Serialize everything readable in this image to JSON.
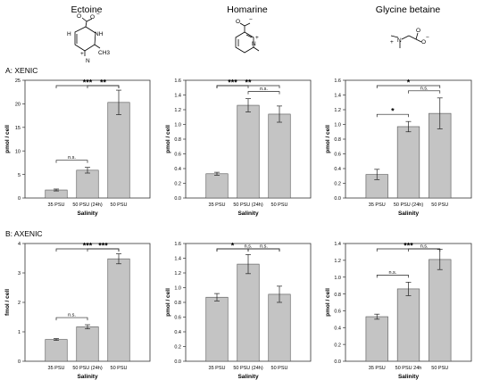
{
  "compounds": [
    {
      "name": "Ectoine",
      "structure_icon": "ectoine-structure-icon",
      "atoms": {
        "h": "H",
        "nh": "NH",
        "n": "N",
        "ch3": "CH3",
        "o": "O",
        "plus": "+",
        "minus": "−"
      }
    },
    {
      "name": "Homarine",
      "structure_icon": "homarine-structure-icon",
      "atoms": {
        "n": "N",
        "o": "O",
        "plus": "+",
        "minus": "−"
      }
    },
    {
      "name": "Glycine betaine",
      "structure_icon": "glycine-betaine-structure-icon",
      "atoms": {
        "n": "N",
        "o": "O",
        "plus": "+",
        "minus": "−"
      }
    }
  ],
  "sections": [
    {
      "label": "A:  XENIC"
    },
    {
      "label": "B:  AXENIC"
    }
  ],
  "colors": {
    "bar": "#c4c4c4",
    "bar_stroke": "#555555",
    "axis": "#333333",
    "text": "#000000"
  },
  "chart_data": [
    {
      "id": "xenic-ectoine",
      "type": "bar",
      "categories": [
        "35 PSU",
        "50 PSU (24h)",
        "50 PSU"
      ],
      "values": [
        1.7,
        5.9,
        20.3
      ],
      "errors": [
        0.2,
        0.6,
        2.6
      ],
      "ylabel": "pmol / cell",
      "xlabel": "Salinity",
      "ylim": [
        0,
        25
      ],
      "yticks": [
        0,
        5,
        10,
        15,
        20,
        25
      ],
      "ytick_labels": [
        "0",
        "5",
        "10",
        "15",
        "20",
        "25"
      ],
      "significance": [
        {
          "from": 0,
          "to": 1,
          "label": "n.s."
        },
        {
          "from": 1,
          "to": 2,
          "label": "**"
        },
        {
          "from": 0,
          "to": 2,
          "label": "***"
        }
      ]
    },
    {
      "id": "xenic-homarine",
      "type": "bar",
      "categories": [
        "35 PSU",
        "50 PSU (24h)",
        "50 PSU"
      ],
      "values": [
        0.33,
        1.26,
        1.14
      ],
      "errors": [
        0.02,
        0.09,
        0.11
      ],
      "ylabel": "pmol / cell",
      "xlabel": "Salinity",
      "ylim": [
        0,
        1.6
      ],
      "yticks": [
        0,
        0.2,
        0.4,
        0.6,
        0.8,
        1.0,
        1.2,
        1.4,
        1.6
      ],
      "ytick_labels": [
        "0.0",
        "0.2",
        "0.4",
        "0.6",
        "0.8",
        "1.0",
        "1.2",
        "1.4",
        "1.6"
      ],
      "significance": [
        {
          "from": 1,
          "to": 2,
          "label": "n.s."
        },
        {
          "from": 0,
          "to": 1,
          "label": "***"
        },
        {
          "from": 0,
          "to": 2,
          "label": "**"
        }
      ]
    },
    {
      "id": "xenic-glycine-betaine",
      "type": "bar",
      "categories": [
        "35 PSU",
        "50 PSU (24h)",
        "50 PSU"
      ],
      "values": [
        0.32,
        0.97,
        1.15
      ],
      "errors": [
        0.07,
        0.07,
        0.21
      ],
      "ylabel": "pmol / cell",
      "xlabel": "Salinity",
      "ylim": [
        0,
        1.6
      ],
      "yticks": [
        0,
        0.2,
        0.4,
        0.6,
        0.8,
        1.0,
        1.2,
        1.4,
        1.6
      ],
      "ytick_labels": [
        "0.0",
        "0.2",
        "0.4",
        "0.6",
        "0.8",
        "1.0",
        "1.2",
        "1.4",
        "1.6"
      ],
      "significance": [
        {
          "from": 0,
          "to": 1,
          "label": "*"
        },
        {
          "from": 1,
          "to": 2,
          "label": "n.s."
        },
        {
          "from": 0,
          "to": 2,
          "label": "*"
        }
      ]
    },
    {
      "id": "axenic-ectoine",
      "type": "bar",
      "categories": [
        "35 PSU",
        "50 PSU (24h)",
        "50 PSU"
      ],
      "values": [
        0.74,
        1.17,
        3.48
      ],
      "errors": [
        0.03,
        0.07,
        0.17
      ],
      "ylabel": "fmol / cell",
      "xlabel": "Salinity",
      "ylim": [
        0,
        4
      ],
      "yticks": [
        0,
        1,
        2,
        3,
        4
      ],
      "ytick_labels": [
        "0",
        "1",
        "2",
        "3",
        "4"
      ],
      "significance": [
        {
          "from": 0,
          "to": 1,
          "label": "n.s."
        },
        {
          "from": 1,
          "to": 2,
          "label": "***"
        },
        {
          "from": 0,
          "to": 2,
          "label": "***"
        }
      ]
    },
    {
      "id": "axenic-homarine",
      "type": "bar",
      "categories": [
        "35 PSU",
        "50 PSU (24h)",
        "50 PSU"
      ],
      "values": [
        0.87,
        1.32,
        0.91
      ],
      "errors": [
        0.05,
        0.13,
        0.11
      ],
      "ylabel": "pmol / cell",
      "xlabel": "Salinity",
      "ylim": [
        0,
        1.6
      ],
      "yticks": [
        0,
        0.2,
        0.4,
        0.6,
        0.8,
        1.0,
        1.2,
        1.4,
        1.6
      ],
      "ytick_labels": [
        "0.0",
        "0.2",
        "0.4",
        "0.6",
        "0.8",
        "1.0",
        "1.2",
        "1.4",
        "1.6"
      ],
      "significance": [
        {
          "from": 0,
          "to": 1,
          "label": "*"
        },
        {
          "from": 1,
          "to": 2,
          "label": "n.s."
        },
        {
          "from": 0,
          "to": 2,
          "label": "n.s."
        }
      ]
    },
    {
      "id": "axenic-glycine-betaine",
      "type": "bar",
      "categories": [
        "35 PSU",
        "50 PSU 24h",
        "50 PSU"
      ],
      "values": [
        0.53,
        0.86,
        1.21
      ],
      "errors": [
        0.03,
        0.08,
        0.12
      ],
      "ylabel": "pmol / cell",
      "xlabel": "Salinity",
      "ylim": [
        0,
        1.4
      ],
      "yticks": [
        0,
        0.2,
        0.4,
        0.6,
        0.8,
        1.0,
        1.2,
        1.4
      ],
      "ytick_labels": [
        "0.0",
        "0.2",
        "0.4",
        "0.6",
        "0.8",
        "1.0",
        "1.2",
        "1.4"
      ],
      "significance": [
        {
          "from": 0,
          "to": 1,
          "label": "n.s."
        },
        {
          "from": 1,
          "to": 2,
          "label": "n.s."
        },
        {
          "from": 0,
          "to": 2,
          "label": "***"
        }
      ]
    }
  ]
}
